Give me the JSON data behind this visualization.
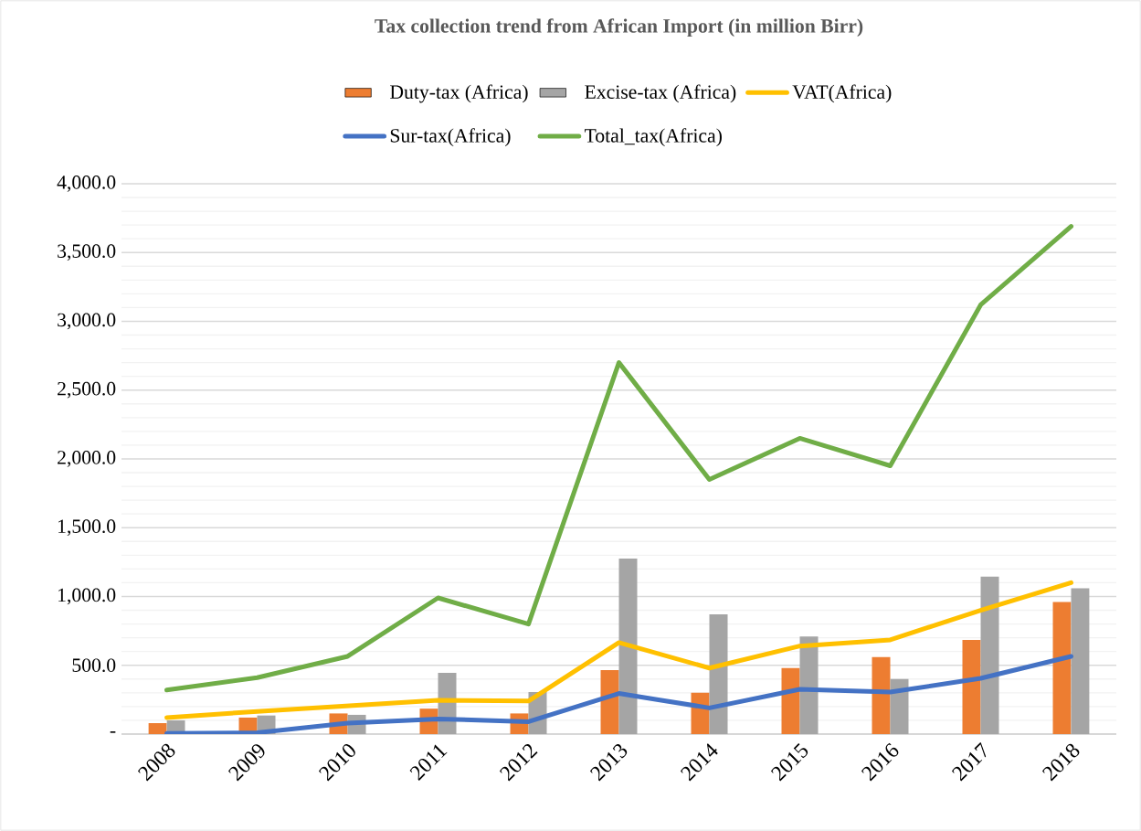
{
  "chart_data": {
    "type": "bar",
    "title": "Tax collection trend from African Import (in million Birr)",
    "categories": [
      "2008",
      "2009",
      "2010",
      "2011",
      "2012",
      "2013",
      "2014",
      "2015",
      "2016",
      "2017",
      "2018"
    ],
    "series": [
      {
        "name": "Duty-tax (Africa)",
        "color": "#ed7d31",
        "values": [
          80,
          120,
          150,
          185,
          150,
          465,
          300,
          480,
          560,
          685,
          960
        ]
      },
      {
        "name": "Excise-tax (Africa)",
        "color": "#a5a5a5",
        "values": [
          100,
          135,
          140,
          445,
          305,
          1275,
          870,
          710,
          400,
          1145,
          1060
        ]
      },
      {
        "name": "VAT(Africa)",
        "type": "line",
        "color": "#ffc000",
        "values": [
          120,
          165,
          205,
          245,
          240,
          665,
          480,
          640,
          685,
          900,
          1100
        ]
      },
      {
        "name": "Sur-tax(Africa)",
        "type": "line",
        "color": "#4472c4",
        "values": [
          5,
          10,
          80,
          110,
          90,
          295,
          190,
          325,
          305,
          405,
          565
        ]
      },
      {
        "name": "Total_tax(Africa)",
        "type": "line",
        "color": "#70ad47",
        "values": [
          320,
          410,
          565,
          990,
          800,
          2700,
          1850,
          2150,
          1950,
          3120,
          3690
        ]
      }
    ],
    "ylim": [
      0,
      4000
    ],
    "yticks": [
      {
        "value": 0,
        "label": "-"
      },
      {
        "value": 500,
        "label": "500.0"
      },
      {
        "value": 1000,
        "label": "1,000.0"
      },
      {
        "value": 1500,
        "label": "1,500.0"
      },
      {
        "value": 2000,
        "label": "2,000.0"
      },
      {
        "value": 2500,
        "label": "2,500.0"
      },
      {
        "value": 3000,
        "label": "3,000.0"
      },
      {
        "value": 3500,
        "label": "3,500.0"
      },
      {
        "value": 4000,
        "label": "4,000.0"
      }
    ],
    "grid": "y",
    "legend": "top",
    "marker": "none",
    "line_style": "solid"
  }
}
